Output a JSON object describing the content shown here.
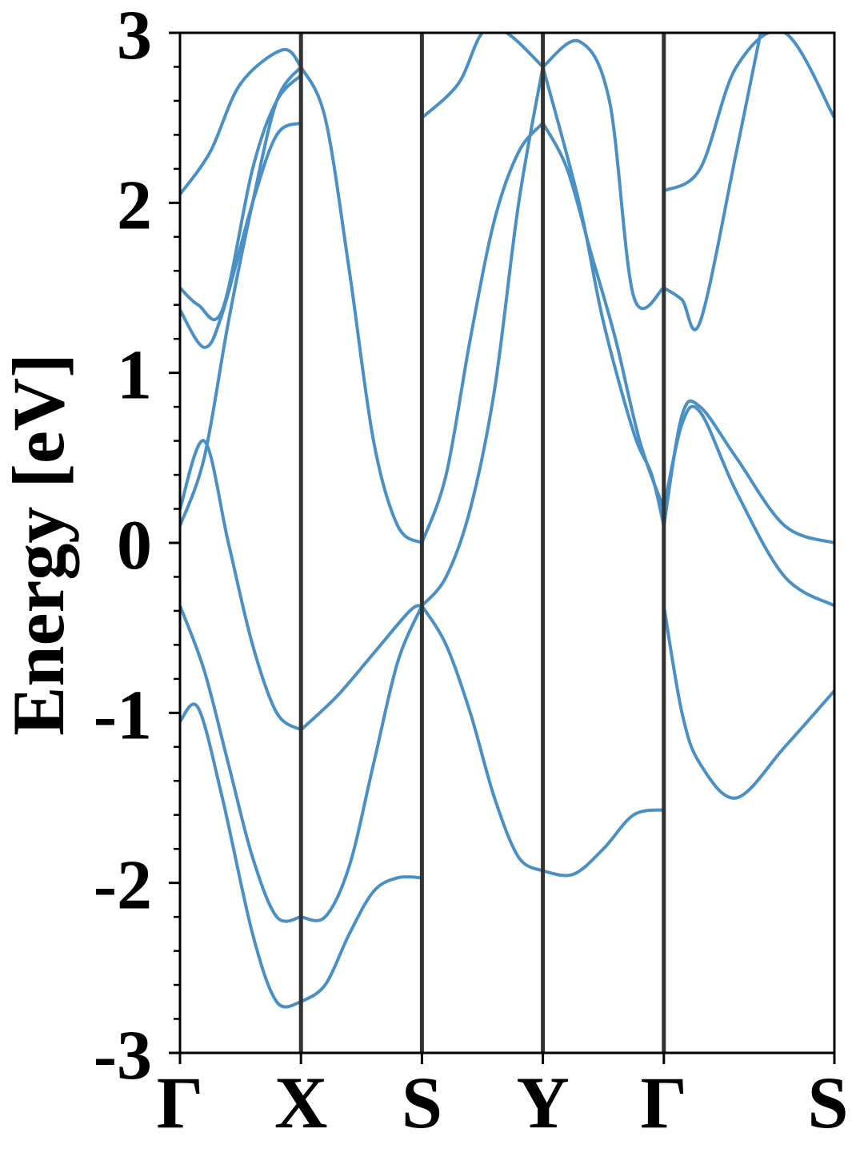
{
  "chart_data": {
    "type": "line",
    "ylabel": "Energy [eV]",
    "xlabel": "",
    "ylim": [
      -3,
      3
    ],
    "yticks": [
      "-3",
      "-2",
      "-1",
      "0",
      "1",
      "2",
      "3"
    ],
    "kpoints": [
      "Γ",
      "X",
      "S",
      "Y",
      "Γ",
      "S"
    ],
    "kpoint_positions": [
      0,
      1,
      2,
      3,
      4,
      5.41
    ],
    "xlim": [
      0,
      5.41
    ],
    "grid": false,
    "band_color": "#4a90c4",
    "kline_color": "#333333",
    "series": [
      {
        "x": [
          0,
          0.2,
          0.4,
          0.6,
          0.8,
          1.0
        ],
        "values": [
          -0.37,
          -0.75,
          -1.3,
          -1.85,
          -2.2,
          -2.2
        ]
      },
      {
        "x": [
          1.0,
          1.2,
          1.4,
          1.6,
          1.8,
          2.0
        ],
        "values": [
          -2.2,
          -2.2,
          -1.9,
          -1.3,
          -0.7,
          -0.37
        ]
      },
      {
        "x": [
          2.0,
          2.2,
          2.4,
          2.6,
          2.8,
          3.0
        ],
        "values": [
          -0.37,
          -0.6,
          -1.0,
          -1.5,
          -1.85,
          -1.93
        ]
      },
      {
        "x": [
          3.0,
          3.25,
          3.5,
          3.75,
          4.0
        ],
        "values": [
          -1.93,
          -1.95,
          -1.8,
          -1.6,
          -1.57
        ]
      },
      {
        "x": [
          0,
          0.15,
          0.35,
          0.6,
          0.8,
          1.0
        ],
        "values": [
          -1.05,
          -0.97,
          -1.5,
          -2.3,
          -2.7,
          -2.7
        ]
      },
      {
        "x": [
          1.0,
          1.2,
          1.4,
          1.6,
          1.8,
          2.0
        ],
        "values": [
          -2.7,
          -2.6,
          -2.3,
          -2.05,
          -1.97,
          -1.97
        ]
      },
      {
        "x": [
          0,
          0.2,
          0.4,
          0.6,
          0.8,
          1.0
        ],
        "values": [
          0.2,
          0.6,
          0.0,
          -0.6,
          -1.0,
          -1.1
        ]
      },
      {
        "x": [
          1.0,
          1.3,
          1.6,
          1.9,
          2.0
        ],
        "values": [
          -1.1,
          -0.9,
          -0.65,
          -0.4,
          -0.37
        ]
      },
      {
        "x": [
          2.0,
          2.2,
          2.4,
          2.6,
          2.8,
          3.0
        ],
        "values": [
          -0.37,
          -0.2,
          0.2,
          0.9,
          2.0,
          2.8
        ]
      },
      {
        "x": [
          0,
          0.2,
          0.4,
          0.6,
          0.8,
          1.0
        ],
        "values": [
          0.1,
          0.5,
          1.3,
          2.0,
          2.6,
          2.8
        ]
      },
      {
        "x": [
          1.0,
          1.2,
          1.4,
          1.6,
          1.8,
          2.0
        ],
        "values": [
          2.8,
          2.5,
          1.6,
          0.6,
          0.1,
          0.0
        ]
      },
      {
        "x": [
          2.0,
          2.2,
          2.4,
          2.6,
          2.8,
          3.0
        ],
        "values": [
          0.0,
          0.4,
          1.2,
          1.9,
          2.3,
          2.47
        ]
      },
      {
        "x": [
          3.0,
          3.2,
          3.4,
          3.6,
          3.8,
          4.0
        ],
        "values": [
          2.47,
          2.2,
          1.7,
          1.2,
          0.6,
          0.2
        ]
      },
      {
        "x": [
          4.0,
          4.15,
          4.3,
          4.6,
          5.0,
          5.41
        ],
        "values": [
          0.2,
          0.7,
          0.77,
          0.3,
          -0.2,
          -0.37
        ]
      },
      {
        "x": [
          3.0,
          3.3,
          3.5,
          3.75,
          3.9,
          4.0
        ],
        "values": [
          2.8,
          2.0,
          1.3,
          0.65,
          0.4,
          0.1
        ]
      },
      {
        "x": [
          4.0,
          4.15,
          4.3,
          4.6,
          5.0,
          5.41
        ],
        "values": [
          0.1,
          0.75,
          0.8,
          0.5,
          0.1,
          0.0
        ]
      },
      {
        "x": [
          4.0,
          4.15,
          4.3,
          4.6,
          5.0,
          5.41
        ],
        "values": [
          -0.37,
          -1.0,
          -1.3,
          -1.5,
          -1.2,
          -0.87
        ]
      },
      {
        "x": [
          0,
          0.2,
          0.35,
          0.6,
          0.8,
          1.0
        ],
        "values": [
          1.37,
          1.15,
          1.35,
          2.0,
          2.4,
          2.47
        ]
      },
      {
        "x": [
          0,
          0.15,
          0.35,
          0.6,
          0.8,
          1.0
        ],
        "values": [
          1.5,
          1.4,
          1.37,
          2.2,
          2.6,
          2.75
        ]
      },
      {
        "x": [
          0,
          0.25,
          0.5,
          0.85,
          1.0
        ],
        "values": [
          2.05,
          2.3,
          2.7,
          2.9,
          2.8
        ]
      },
      {
        "x": [
          3.0,
          3.3,
          3.55,
          3.75,
          4.0
        ],
        "values": [
          2.8,
          2.95,
          2.6,
          1.45,
          1.5
        ]
      },
      {
        "x": [
          4.0,
          4.15,
          4.3,
          4.6,
          4.8
        ],
        "values": [
          1.5,
          1.43,
          1.3,
          2.3,
          3.0
        ]
      },
      {
        "x": [
          2.0,
          2.3,
          2.5,
          2.7,
          3.0
        ],
        "values": [
          2.5,
          2.7,
          3.0,
          3.0,
          2.8
        ]
      },
      {
        "x": [
          4.0,
          4.3,
          4.6,
          5.0,
          5.41
        ],
        "values": [
          2.07,
          2.2,
          2.8,
          3.0,
          2.5
        ]
      }
    ]
  }
}
